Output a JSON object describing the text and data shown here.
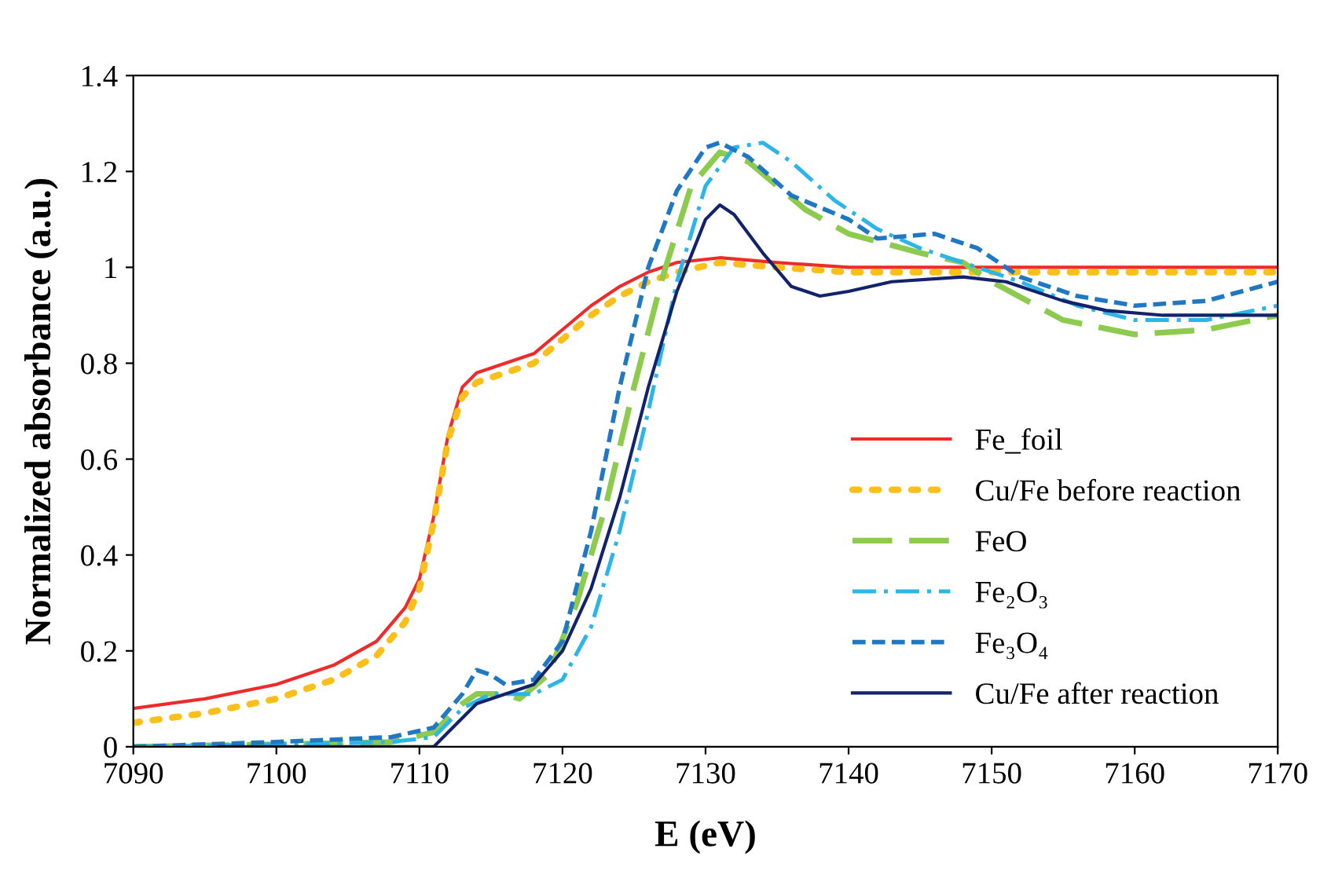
{
  "chart_data": {
    "type": "line",
    "xlabel": "E (eV)",
    "ylabel": "Normalized absorbance (a.u.)",
    "xlim": [
      7090,
      7170
    ],
    "xticks": [
      7090,
      7100,
      7110,
      7120,
      7130,
      7140,
      7150,
      7160,
      7170
    ],
    "ylim": [
      0,
      1.4
    ],
    "yticks": [
      0,
      0.2,
      0.4,
      0.6,
      0.8,
      1,
      1.2,
      1.4
    ],
    "grid": false,
    "legend": "lower right",
    "marker": "none",
    "series": [
      {
        "name": "Fe_foil",
        "color": "#ee2a2a",
        "line_style": "solid",
        "x": [
          7090,
          7095,
          7100,
          7104,
          7107,
          7109,
          7110,
          7111,
          7112,
          7113,
          7114,
          7116,
          7118,
          7120,
          7122,
          7124,
          7126,
          7128,
          7131,
          7135,
          7140,
          7150,
          7160,
          7170
        ],
        "values": [
          0.08,
          0.1,
          0.13,
          0.17,
          0.22,
          0.29,
          0.35,
          0.48,
          0.65,
          0.75,
          0.78,
          0.8,
          0.82,
          0.87,
          0.92,
          0.96,
          0.99,
          1.01,
          1.02,
          1.01,
          1.0,
          1.0,
          1.0,
          1.0
        ]
      },
      {
        "name": "Cu/Fe before reaction",
        "color": "#fbbf1a",
        "line_style": "dotted",
        "x": [
          7090,
          7095,
          7100,
          7104,
          7107,
          7109,
          7110,
          7111,
          7112,
          7113,
          7114,
          7116,
          7118,
          7120,
          7122,
          7124,
          7126,
          7128,
          7131,
          7135,
          7140,
          7150,
          7160,
          7170
        ],
        "values": [
          0.05,
          0.07,
          0.1,
          0.14,
          0.19,
          0.26,
          0.33,
          0.47,
          0.64,
          0.73,
          0.76,
          0.78,
          0.8,
          0.85,
          0.9,
          0.94,
          0.97,
          0.99,
          1.01,
          1.0,
          0.99,
          0.99,
          0.99,
          0.99
        ]
      },
      {
        "name": "FeO",
        "color": "#8dcb4f",
        "line_style": "longdash",
        "x": [
          7090,
          7100,
          7108,
          7111,
          7113,
          7114,
          7116,
          7117,
          7119,
          7121,
          7123,
          7125,
          7127,
          7129,
          7131,
          7133,
          7135,
          7137,
          7140,
          7145,
          7148,
          7150,
          7155,
          7160,
          7165,
          7170
        ],
        "values": [
          0.0,
          0.005,
          0.01,
          0.03,
          0.09,
          0.11,
          0.11,
          0.1,
          0.15,
          0.3,
          0.5,
          0.75,
          0.98,
          1.17,
          1.24,
          1.22,
          1.17,
          1.12,
          1.07,
          1.03,
          1.01,
          0.97,
          0.89,
          0.86,
          0.87,
          0.9
        ]
      },
      {
        "name": "Fe₂O₃",
        "color": "#2bb5e8",
        "line_style": "dashdot",
        "x": [
          7090,
          7100,
          7108,
          7111,
          7113,
          7115,
          7118,
          7120,
          7122,
          7124,
          7126,
          7128,
          7130,
          7132,
          7134,
          7136,
          7139,
          7142,
          7145,
          7148,
          7152,
          7156,
          7160,
          7165,
          7170
        ],
        "values": [
          0.0,
          0.005,
          0.01,
          0.02,
          0.08,
          0.11,
          0.11,
          0.14,
          0.25,
          0.45,
          0.7,
          0.97,
          1.17,
          1.25,
          1.26,
          1.22,
          1.14,
          1.08,
          1.04,
          1.01,
          0.97,
          0.92,
          0.89,
          0.89,
          0.92
        ]
      },
      {
        "name": "Fe₃O₄",
        "color": "#1f78c1",
        "line_style": "dashed",
        "x": [
          7090,
          7100,
          7108,
          7111,
          7113,
          7114,
          7115,
          7116,
          7118,
          7120,
          7122,
          7124,
          7126,
          7128,
          7130,
          7131,
          7133,
          7136,
          7140,
          7142,
          7146,
          7149,
          7152,
          7156,
          7160,
          7165,
          7170
        ],
        "values": [
          0.0,
          0.01,
          0.02,
          0.04,
          0.11,
          0.16,
          0.15,
          0.13,
          0.14,
          0.22,
          0.45,
          0.75,
          1.0,
          1.16,
          1.25,
          1.26,
          1.23,
          1.15,
          1.1,
          1.06,
          1.07,
          1.04,
          0.98,
          0.94,
          0.92,
          0.93,
          0.97
        ]
      },
      {
        "name": "Cu/Fe after reaction",
        "color": "#12236b",
        "line_style": "solid",
        "x": [
          7096,
          7108,
          7111,
          7112,
          7114,
          7116,
          7118,
          7120,
          7122,
          7124,
          7126,
          7128,
          7130,
          7131,
          7132,
          7134,
          7136,
          7138,
          7140,
          7143,
          7148,
          7151,
          7155,
          7158,
          7162,
          7170
        ],
        "values": [
          0.0,
          0.0,
          0.0,
          0.03,
          0.09,
          0.11,
          0.13,
          0.2,
          0.33,
          0.52,
          0.75,
          0.95,
          1.1,
          1.13,
          1.11,
          1.03,
          0.96,
          0.94,
          0.95,
          0.97,
          0.98,
          0.97,
          0.93,
          0.91,
          0.9,
          0.9
        ]
      }
    ]
  }
}
